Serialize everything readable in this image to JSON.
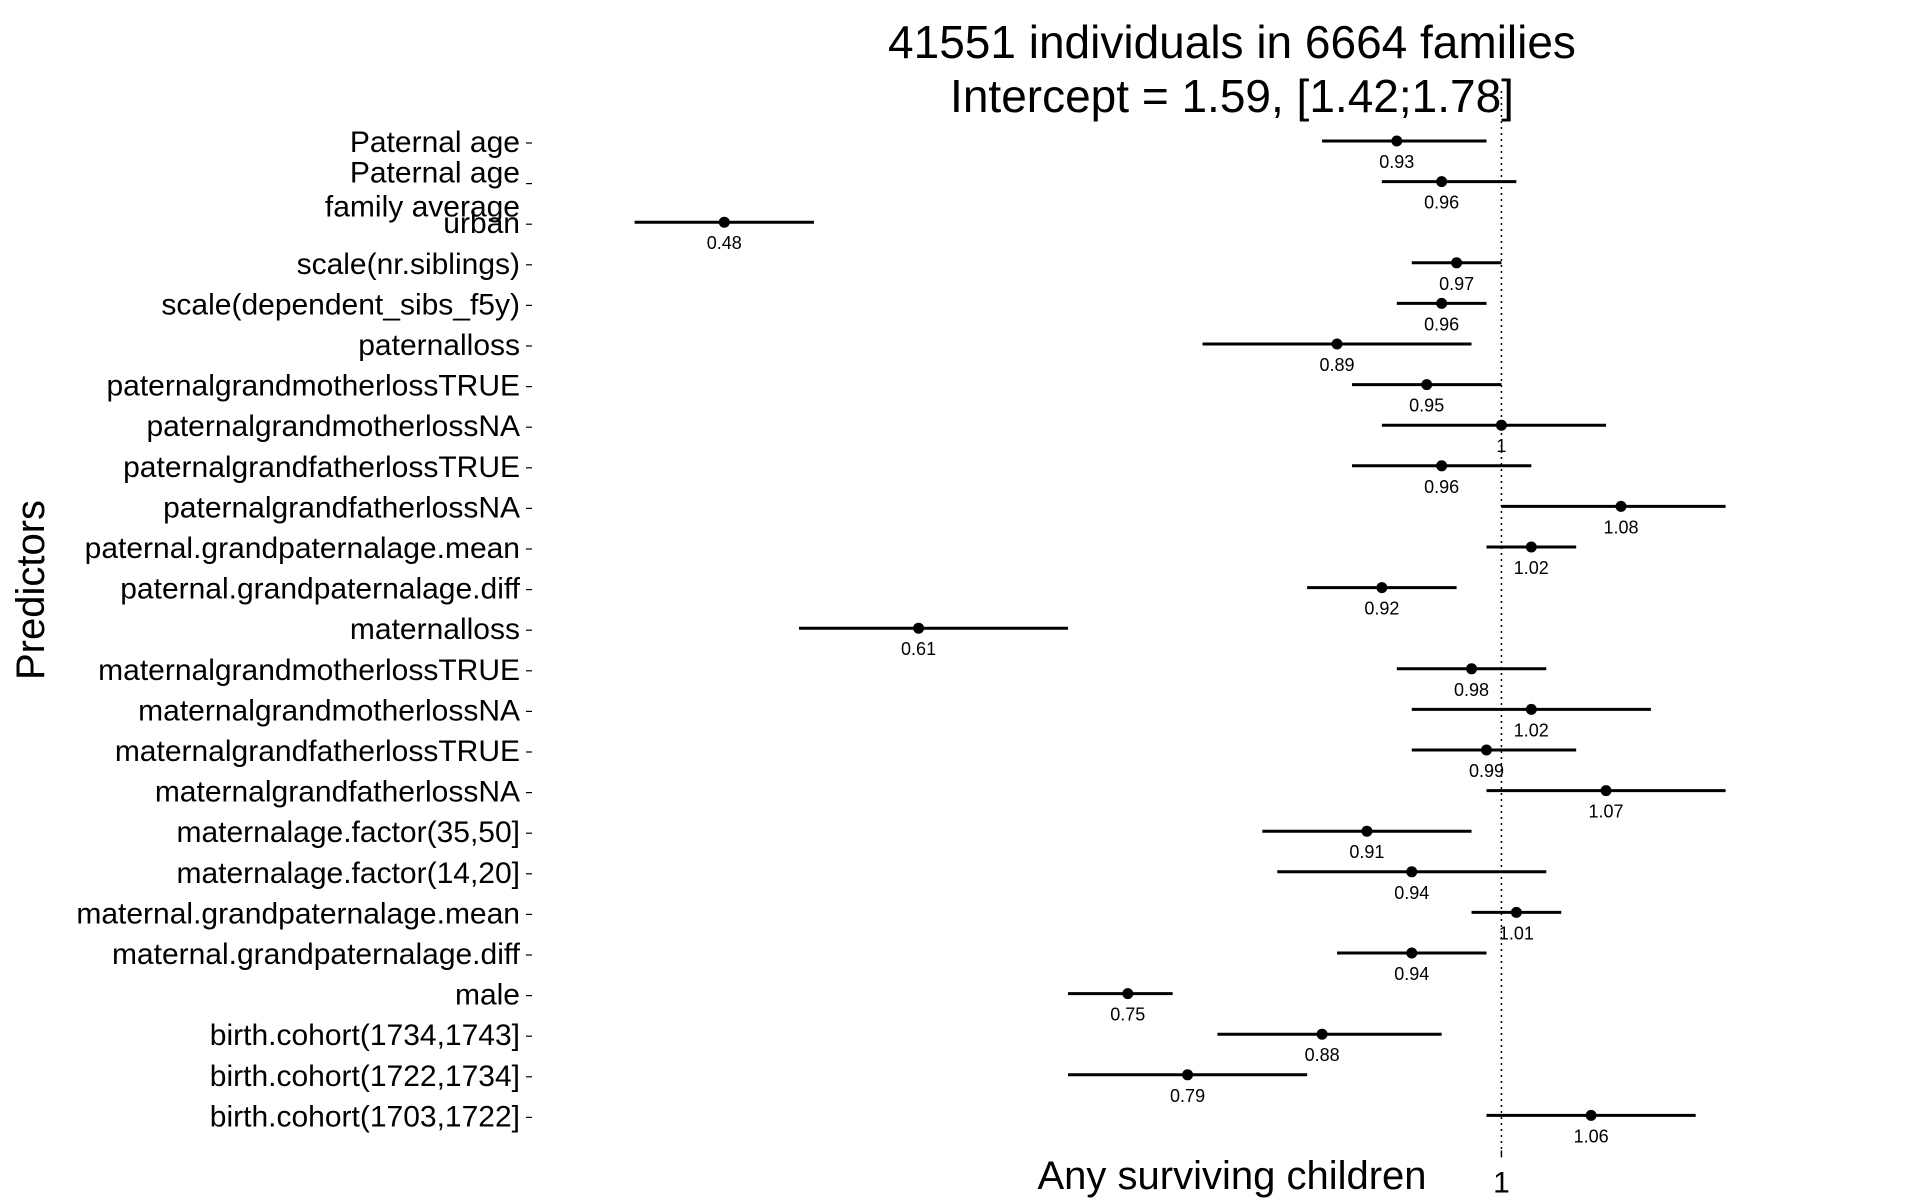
{
  "chart_data": {
    "type": "forest",
    "title_lines": [
      "41551 individuals in 6664 families",
      "Intercept = 1.59, [1.42;1.78]"
    ],
    "xlabel": "Any surviving children",
    "ylabel": "Predictors",
    "xlim": [
      0.35,
      1.26
    ],
    "reference_line": 1,
    "x_ticks": [
      1
    ],
    "x_tick_labels": [
      "1"
    ],
    "rows": [
      {
        "label": [
          "Paternal age"
        ],
        "estimate": 0.93,
        "lower": 0.88,
        "upper": 0.99,
        "value_label": "0.93"
      },
      {
        "label": [
          "Paternal age",
          "family average"
        ],
        "estimate": 0.96,
        "lower": 0.92,
        "upper": 1.01,
        "value_label": "0.96"
      },
      {
        "label": [
          "urban"
        ],
        "estimate": 0.48,
        "lower": 0.42,
        "upper": 0.54,
        "value_label": "0.48"
      },
      {
        "label": [
          "scale(nr.siblings)"
        ],
        "estimate": 0.97,
        "lower": 0.94,
        "upper": 1.0,
        "value_label": "0.97"
      },
      {
        "label": [
          "scale(dependent_sibs_f5y)"
        ],
        "estimate": 0.96,
        "lower": 0.93,
        "upper": 0.99,
        "value_label": "0.96"
      },
      {
        "label": [
          "paternalloss"
        ],
        "estimate": 0.89,
        "lower": 0.8,
        "upper": 0.98,
        "value_label": "0.89"
      },
      {
        "label": [
          "paternalgrandmotherlossTRUE"
        ],
        "estimate": 0.95,
        "lower": 0.9,
        "upper": 1.0,
        "value_label": "0.95"
      },
      {
        "label": [
          "paternalgrandmotherlossNA"
        ],
        "estimate": 1.0,
        "lower": 0.92,
        "upper": 1.07,
        "value_label": "1"
      },
      {
        "label": [
          "paternalgrandfatherlossTRUE"
        ],
        "estimate": 0.96,
        "lower": 0.9,
        "upper": 1.02,
        "value_label": "0.96"
      },
      {
        "label": [
          "paternalgrandfatherlossNA"
        ],
        "estimate": 1.08,
        "lower": 1.0,
        "upper": 1.15,
        "value_label": "1.08"
      },
      {
        "label": [
          "paternal.grandpaternalage.mean"
        ],
        "estimate": 1.02,
        "lower": 0.99,
        "upper": 1.05,
        "value_label": "1.02"
      },
      {
        "label": [
          "paternal.grandpaternalage.diff"
        ],
        "estimate": 0.92,
        "lower": 0.87,
        "upper": 0.97,
        "value_label": "0.92"
      },
      {
        "label": [
          "maternalloss"
        ],
        "estimate": 0.61,
        "lower": 0.53,
        "upper": 0.71,
        "value_label": "0.61"
      },
      {
        "label": [
          "maternalgrandmotherlossTRUE"
        ],
        "estimate": 0.98,
        "lower": 0.93,
        "upper": 1.03,
        "value_label": "0.98"
      },
      {
        "label": [
          "maternalgrandmotherlossNA"
        ],
        "estimate": 1.02,
        "lower": 0.94,
        "upper": 1.1,
        "value_label": "1.02"
      },
      {
        "label": [
          "maternalgrandfatherlossTRUE"
        ],
        "estimate": 0.99,
        "lower": 0.94,
        "upper": 1.05,
        "value_label": "0.99"
      },
      {
        "label": [
          "maternalgrandfatherlossNA"
        ],
        "estimate": 1.07,
        "lower": 0.99,
        "upper": 1.15,
        "value_label": "1.07"
      },
      {
        "label": [
          "maternalage.factor(35,50]"
        ],
        "estimate": 0.91,
        "lower": 0.84,
        "upper": 0.98,
        "value_label": "0.91"
      },
      {
        "label": [
          "maternalage.factor(14,20]"
        ],
        "estimate": 0.94,
        "lower": 0.85,
        "upper": 1.03,
        "value_label": "0.94"
      },
      {
        "label": [
          "maternal.grandpaternalage.mean"
        ],
        "estimate": 1.01,
        "lower": 0.98,
        "upper": 1.04,
        "value_label": "1.01"
      },
      {
        "label": [
          "maternal.grandpaternalage.diff"
        ],
        "estimate": 0.94,
        "lower": 0.89,
        "upper": 0.99,
        "value_label": "0.94"
      },
      {
        "label": [
          "male"
        ],
        "estimate": 0.75,
        "lower": 0.71,
        "upper": 0.78,
        "value_label": "0.75"
      },
      {
        "label": [
          "birth.cohort(1734,1743]"
        ],
        "estimate": 0.88,
        "lower": 0.81,
        "upper": 0.96,
        "value_label": "0.88"
      },
      {
        "label": [
          "birth.cohort(1722,1734]"
        ],
        "estimate": 0.79,
        "lower": 0.71,
        "upper": 0.87,
        "value_label": "0.79"
      },
      {
        "label": [
          "birth.cohort(1703,1722]"
        ],
        "estimate": 1.06,
        "lower": 0.99,
        "upper": 1.13,
        "value_label": "1.06"
      }
    ]
  }
}
